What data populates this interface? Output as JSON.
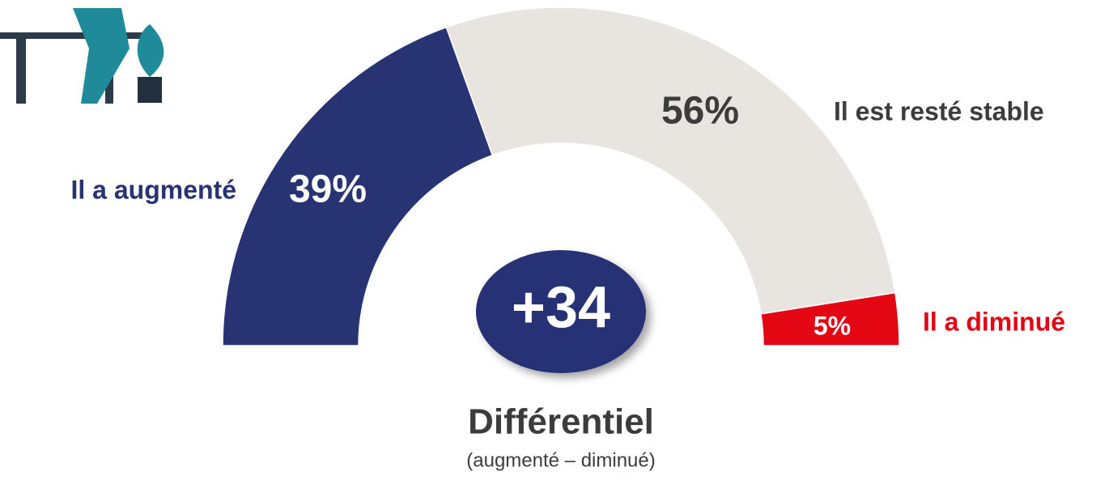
{
  "chart_data": {
    "type": "half-donut",
    "categories": [
      "Il a augmenté",
      "Il est resté stable",
      "Il a diminué"
    ],
    "values": [
      39,
      56,
      5
    ],
    "value_labels": [
      "39%",
      "56%",
      "5%"
    ],
    "colors": [
      "#283374",
      "#e8e4df",
      "#e30613"
    ],
    "label_colors": [
      "#283374",
      "#3c3c3c",
      "#e30613"
    ],
    "value_label_colors": [
      "#ffffff",
      "#3c3c3c",
      "#ffffff"
    ],
    "differential": {
      "value": 34,
      "label": "+34"
    },
    "differential_title": "Différentiel",
    "differential_note": "(augmenté – diminué)"
  }
}
